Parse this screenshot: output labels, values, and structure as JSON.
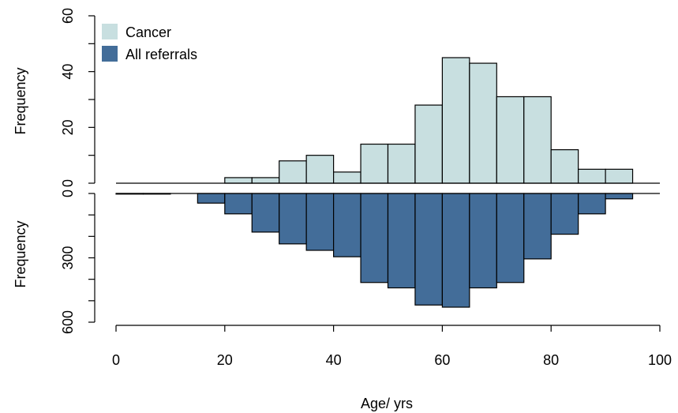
{
  "chart_data": {
    "type": "bar",
    "xlabel": "Age/ yrs",
    "x_ticks": [
      "0",
      "20",
      "40",
      "60",
      "80",
      "100"
    ],
    "xlim": [
      0,
      100
    ],
    "bin_edges": [
      0,
      5,
      10,
      15,
      20,
      25,
      30,
      35,
      40,
      45,
      50,
      55,
      60,
      65,
      70,
      75,
      80,
      85,
      90,
      95,
      100
    ],
    "colors": {
      "cancer": "#c8dfe0",
      "referrals": "#436d99"
    },
    "top": {
      "ylabel": "Frequency",
      "ylim": [
        0,
        60
      ],
      "y_ticks": [
        "0",
        "20",
        "40",
        "60"
      ],
      "series": {
        "name": "Cancer",
        "values": [
          0,
          0,
          0,
          0,
          2,
          2,
          8,
          10,
          4,
          14,
          14,
          28,
          45,
          43,
          31,
          31,
          12,
          5,
          5,
          0
        ]
      }
    },
    "bottom": {
      "ylabel": "Frequency",
      "ylim": [
        0,
        600
      ],
      "y_ticks": [
        "0",
        "300",
        "600"
      ],
      "series": {
        "name": "All referrals",
        "values": [
          2,
          1,
          0,
          45,
          95,
          180,
          235,
          265,
          295,
          415,
          440,
          520,
          530,
          440,
          415,
          305,
          190,
          95,
          25,
          0
        ]
      }
    },
    "legend": {
      "position": "top-left",
      "items": [
        "Cancer",
        "All referrals"
      ]
    }
  }
}
